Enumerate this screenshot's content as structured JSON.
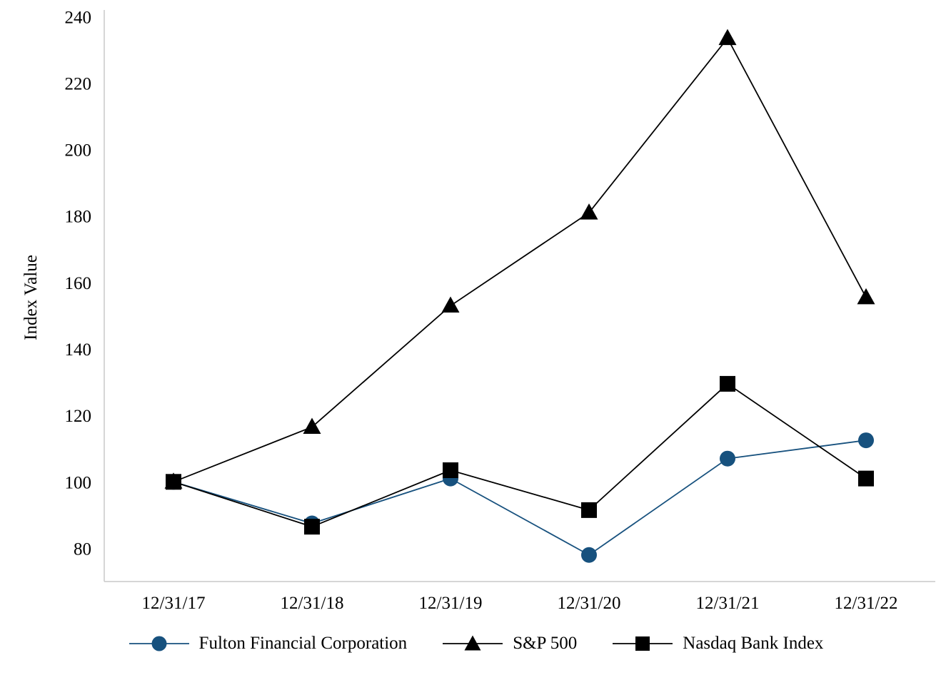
{
  "chart_data": {
    "type": "line",
    "title": "",
    "xlabel": "",
    "ylabel": "Index Value",
    "categories": [
      "12/31/17",
      "12/31/18",
      "12/31/19",
      "12/31/20",
      "12/31/21",
      "12/31/22"
    ],
    "y_ticks": [
      80,
      100,
      120,
      140,
      160,
      180,
      200,
      220,
      240
    ],
    "ylim": [
      70,
      242
    ],
    "grid": false,
    "legend_position": "bottom",
    "axis_color": "#c9c9c9",
    "text_color": "#000000",
    "series": [
      {
        "name": "Fulton Financial Corporation",
        "marker": "circle",
        "color": "#17517E",
        "values": [
          100,
          87.5,
          101,
          78,
          107,
          112.5
        ]
      },
      {
        "name": "S&P 500",
        "marker": "triangle",
        "color": "#000000",
        "values": [
          100,
          116.5,
          153,
          181,
          233.5,
          155.5
        ]
      },
      {
        "name": "Nasdaq Bank Index",
        "marker": "square",
        "color": "#000000",
        "values": [
          100,
          86.5,
          103.5,
          91.5,
          129.5,
          101
        ]
      }
    ]
  }
}
